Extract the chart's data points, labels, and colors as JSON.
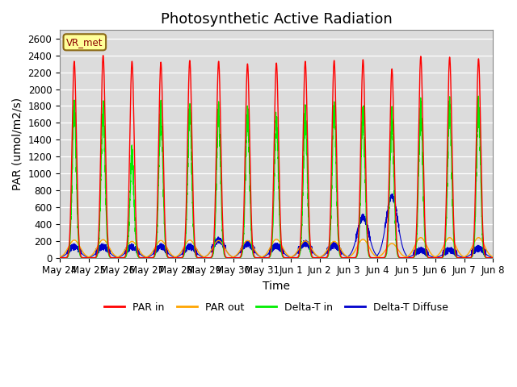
{
  "title": "Photosynthetic Active Radiation",
  "ylabel": "PAR (umol/m2/s)",
  "xlabel": "Time",
  "station_label": "VR_met",
  "ylim": [
    0,
    2700
  ],
  "n_days": 15,
  "xtick_labels": [
    "May 24",
    "May 25",
    "May 26",
    "May 27",
    "May 28",
    "May 29",
    "May 30",
    "May 31",
    "Jun 1",
    "Jun 2",
    "Jun 3",
    "Jun 4",
    "Jun 5",
    "Jun 6",
    "Jun 7",
    "Jun 8"
  ],
  "colors": {
    "PAR_in": "#FF0000",
    "PAR_out": "#FFA500",
    "Delta_T_in": "#00EE00",
    "Delta_T_Diffuse": "#0000CC"
  },
  "plot_bg": "#DCDCDC",
  "fig_bg": "#FFFFFF",
  "legend_labels": [
    "PAR in",
    "PAR out",
    "Delta-T in",
    "Delta-T Diffuse"
  ],
  "par_in_peaks": [
    2330,
    2400,
    2330,
    2320,
    2340,
    2330,
    2300,
    2310,
    2330,
    2340,
    2350,
    2240,
    2390,
    2380,
    2360
  ],
  "par_out_peaks": [
    210,
    215,
    195,
    205,
    210,
    205,
    205,
    220,
    200,
    195,
    220,
    170,
    240,
    240,
    240
  ],
  "delta_t_peaks": [
    1750,
    1750,
    1200,
    1750,
    1750,
    1720,
    1700,
    1680,
    1690,
    1730,
    1750,
    1650,
    1760,
    1780,
    1780
  ],
  "blue_peaks": [
    120,
    120,
    120,
    120,
    120,
    200,
    160,
    130,
    160,
    140,
    470,
    720,
    80,
    80,
    100
  ],
  "title_fontsize": 13,
  "axis_label_fontsize": 10,
  "tick_fontsize": 8.5
}
